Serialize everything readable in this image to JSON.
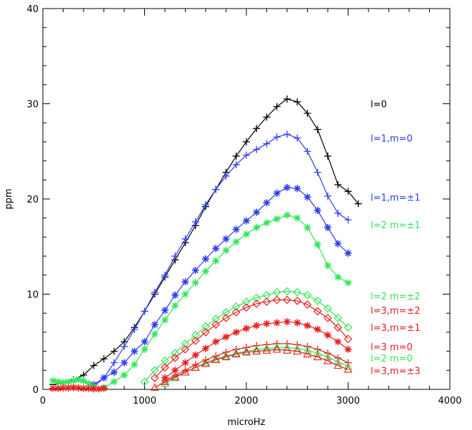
{
  "chart_data": {
    "type": "line",
    "title": "",
    "xlabel": "microHz",
    "ylabel": "ppm",
    "xlim": [
      0,
      4000
    ],
    "ylim": [
      0,
      40
    ],
    "xticks": [
      0,
      1000,
      2000,
      3000,
      4000
    ],
    "yticks": [
      0,
      10,
      20,
      30,
      40
    ],
    "grid": false,
    "legend_placement": "right, inside plot",
    "series": [
      {
        "name": "l=0",
        "label_y": 30.0,
        "color": "#000000",
        "marker": "plus",
        "x": [
          100,
          200,
          300,
          400,
          500,
          600,
          700,
          800,
          900,
          1000,
          1100,
          1200,
          1300,
          1400,
          1500,
          1600,
          1700,
          1800,
          1900,
          2000,
          2100,
          2200,
          2300,
          2400,
          2500,
          2600,
          2700,
          2800,
          2900,
          3000,
          3100
        ],
        "values": [
          0.5,
          0.7,
          1.0,
          1.5,
          2.5,
          3.2,
          4.0,
          5.0,
          6.5,
          8.2,
          10.0,
          11.8,
          13.6,
          15.4,
          17.2,
          19.2,
          21.0,
          22.8,
          24.5,
          26.0,
          27.4,
          28.6,
          29.7,
          30.5,
          30.2,
          29.0,
          27.3,
          24.5,
          21.5,
          20.8,
          19.5
        ]
      },
      {
        "name": "l=1,m=0",
        "label_y": 26.4,
        "color": "#2e3ef0",
        "marker": "plus",
        "x": [
          500,
          600,
          700,
          800,
          900,
          1000,
          1100,
          1200,
          1300,
          1400,
          1500,
          1600,
          1700,
          1800,
          1900,
          2000,
          2100,
          2200,
          2300,
          2400,
          2500,
          2600,
          2700,
          2800,
          2900,
          3000
        ],
        "values": [
          0.3,
          1.2,
          2.8,
          4.5,
          6.3,
          8.2,
          10.2,
          12.0,
          14.0,
          15.8,
          17.6,
          19.4,
          21.0,
          22.4,
          23.6,
          24.6,
          25.2,
          25.8,
          26.5,
          26.8,
          26.4,
          25.0,
          22.8,
          20.3,
          18.5,
          17.8
        ]
      },
      {
        "name": "l=1,m=±1",
        "label_y": 20.2,
        "color": "#2e3ef0",
        "marker": "asterisk",
        "x": [
          500,
          600,
          700,
          800,
          900,
          1000,
          1100,
          1200,
          1300,
          1400,
          1500,
          1600,
          1700,
          1800,
          1900,
          2000,
          2100,
          2200,
          2300,
          2400,
          2500,
          2600,
          2700,
          2800,
          2900,
          3000
        ],
        "values": [
          0.5,
          1.2,
          1.8,
          2.8,
          4.0,
          5.0,
          6.8,
          8.3,
          9.9,
          11.3,
          12.5,
          13.7,
          14.8,
          15.8,
          16.8,
          17.7,
          18.6,
          19.6,
          20.6,
          21.2,
          21.1,
          20.2,
          18.8,
          17.0,
          15.3,
          14.3
        ]
      },
      {
        "name": "l=2 m=±1",
        "label_y": 17.3,
        "color": "#33e65a",
        "marker": "asterisk",
        "x": [
          600,
          700,
          800,
          900,
          1000,
          1100,
          1200,
          1300,
          1400,
          1500,
          1600,
          1700,
          1800,
          1900,
          2000,
          2100,
          2200,
          2300,
          2400,
          2500,
          2600,
          2700,
          2800,
          2900,
          3000
        ],
        "values": [
          0.2,
          0.8,
          1.5,
          2.6,
          4.2,
          5.8,
          7.3,
          8.8,
          10.0,
          11.2,
          12.4,
          13.5,
          14.6,
          15.5,
          16.3,
          17.0,
          17.5,
          17.9,
          18.3,
          18.0,
          17.0,
          15.2,
          13.0,
          11.8,
          11.2
        ]
      },
      {
        "name": "l=2 m=±2",
        "label_y": 9.8,
        "color": "#33e65a",
        "marker": "diamond",
        "x": [
          1000,
          1100,
          1200,
          1300,
          1400,
          1500,
          1600,
          1700,
          1800,
          1900,
          2000,
          2100,
          2200,
          2300,
          2400,
          2500,
          2600,
          2700,
          2800,
          2900,
          3000
        ],
        "values": [
          0.8,
          2.0,
          3.0,
          3.8,
          4.8,
          5.7,
          6.6,
          7.4,
          8.1,
          8.7,
          9.2,
          9.6,
          9.9,
          10.2,
          10.3,
          10.2,
          9.9,
          9.3,
          8.5,
          7.5,
          6.5
        ]
      },
      {
        "name": "l=3,m=±2",
        "label_y": 8.3,
        "color": "#e81e1e",
        "marker": "diamond",
        "x": [
          1100,
          1200,
          1300,
          1400,
          1500,
          1600,
          1700,
          1800,
          1900,
          2000,
          2100,
          2200,
          2300,
          2400,
          2500,
          2600,
          2700,
          2800,
          2900,
          3000
        ],
        "values": [
          1.2,
          2.3,
          3.3,
          4.2,
          5.1,
          6.0,
          6.8,
          7.5,
          8.1,
          8.6,
          9.0,
          9.2,
          9.4,
          9.4,
          9.3,
          8.9,
          8.2,
          7.5,
          6.5,
          5.3
        ]
      },
      {
        "name": "l=3,m=±1",
        "label_y": 6.5,
        "color": "#e81e1e",
        "marker": "asterisk",
        "x": [
          1200,
          1300,
          1400,
          1500,
          1600,
          1700,
          1800,
          1900,
          2000,
          2100,
          2200,
          2300,
          2400,
          2500,
          2600,
          2700,
          2800,
          2900,
          3000
        ],
        "values": [
          1.2,
          2.0,
          2.8,
          3.6,
          4.3,
          5.0,
          5.5,
          6.0,
          6.4,
          6.7,
          6.9,
          7.0,
          7.1,
          7.0,
          6.7,
          6.3,
          5.7,
          5.0,
          4.2
        ]
      },
      {
        "name": "l=3 m=0",
        "label_y": 4.5,
        "color": "#e81e1e",
        "marker": "plus",
        "x": [
          1200,
          1300,
          1400,
          1500,
          1600,
          1700,
          1800,
          1900,
          2000,
          2100,
          2200,
          2300,
          2400,
          2500,
          2600,
          2700,
          2800,
          2900,
          3000
        ],
        "values": [
          0.9,
          1.5,
          2.0,
          2.6,
          3.1,
          3.5,
          3.9,
          4.2,
          4.4,
          4.6,
          4.7,
          4.8,
          4.8,
          4.7,
          4.5,
          4.2,
          3.8,
          3.3,
          2.8
        ]
      },
      {
        "name": "l=2 m=0",
        "label_y": 3.3,
        "color": "#33e65a",
        "marker": "triangle",
        "x": [
          1200,
          1300,
          1400,
          1500,
          1600,
          1700,
          1800,
          1900,
          2000,
          2100,
          2200,
          2300,
          2400,
          2500,
          2600,
          2700,
          2800,
          2900,
          3000
        ],
        "values": [
          0.6,
          1.2,
          1.8,
          2.3,
          2.8,
          3.2,
          3.5,
          3.8,
          4.0,
          4.2,
          4.3,
          4.4,
          4.4,
          4.3,
          4.1,
          3.8,
          3.4,
          2.9,
          2.4
        ]
      },
      {
        "name": "l=3,m=±3",
        "label_y": 2.0,
        "color": "#e81e1e",
        "marker": "triangle",
        "x": [
          1100,
          1200,
          1300,
          1400,
          1500,
          1600,
          1700,
          1800,
          1900,
          2000,
          2100,
          2200,
          2300,
          2400,
          2500,
          2600,
          2700,
          2800,
          2900,
          3000
        ],
        "values": [
          0.2,
          0.8,
          1.3,
          1.8,
          2.3,
          2.7,
          3.1,
          3.4,
          3.7,
          3.9,
          4.0,
          4.1,
          4.2,
          4.1,
          4.0,
          3.7,
          3.4,
          3.0,
          2.5,
          2.1
        ]
      },
      {
        "name": "",
        "color": "#33e65a",
        "marker": "asterisk",
        "x": [
          100,
          150,
          200,
          250,
          300,
          350,
          400,
          450,
          500
        ],
        "values": [
          0.9,
          0.8,
          0.7,
          0.8,
          0.9,
          1.0,
          0.9,
          0.6,
          0.3
        ]
      },
      {
        "name": "",
        "color": "#e81e1e",
        "marker": "asterisk",
        "x": [
          100,
          150,
          200,
          250,
          300,
          350,
          400,
          450,
          500,
          550,
          600
        ],
        "values": [
          0.1,
          0.1,
          0.15,
          0.15,
          0.2,
          0.15,
          0.1,
          0.1,
          0.05,
          0.05,
          0.1
        ]
      }
    ]
  }
}
